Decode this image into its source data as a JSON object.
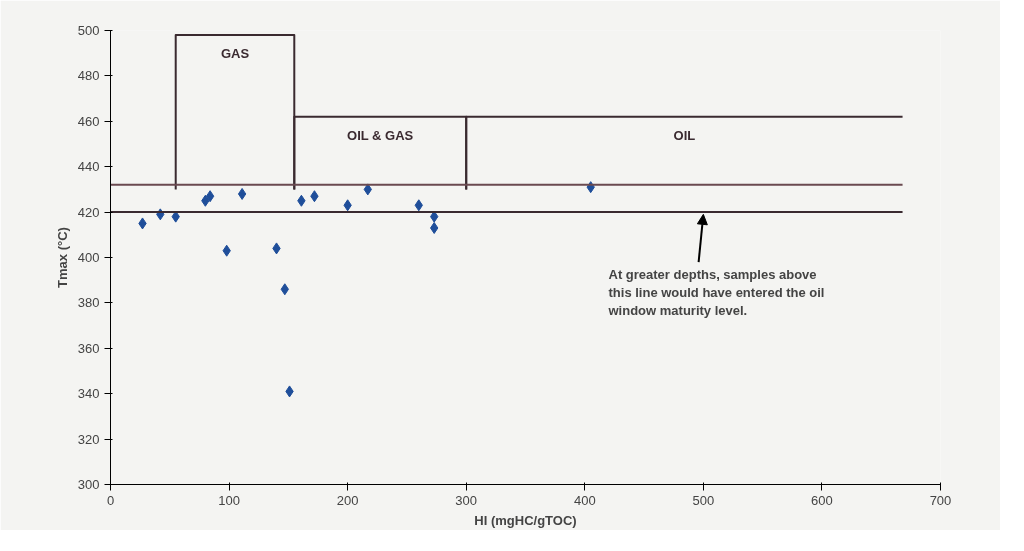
{
  "chart_data": {
    "type": "scatter",
    "xlabel": "HI (mgHC/gTOC)",
    "ylabel": "Tmax (°C)",
    "xlim": [
      0,
      700
    ],
    "ylim": [
      300,
      500
    ],
    "xticks": [
      0,
      100,
      200,
      300,
      400,
      500,
      600,
      700
    ],
    "yticks": [
      300,
      320,
      340,
      360,
      380,
      400,
      420,
      440,
      460,
      480,
      500
    ],
    "grid": false,
    "series": [
      {
        "marker": "diamond",
        "color": "#1f4e9a",
        "x": [
          27,
          42,
          55,
          80,
          84,
          111,
          98,
          140,
          147,
          151,
          161,
          172,
          200,
          217,
          260,
          273,
          273,
          405
        ],
        "values": [
          415,
          419,
          418,
          425,
          427,
          428,
          403,
          404,
          386,
          341,
          425,
          427,
          423,
          430,
          423,
          418,
          413,
          431
        ]
      },
      {
        "type": "line",
        "name": "GAS",
        "color": "#3a2a30",
        "x": [
          55,
          55,
          155,
          155
        ],
        "values": [
          430,
          498,
          498,
          430
        ]
      },
      {
        "type": "line",
        "name": "OIL & GAS",
        "color": "#3a2a30",
        "x": [
          155,
          155,
          300,
          300
        ],
        "values": [
          430,
          462,
          462,
          430
        ]
      },
      {
        "type": "line",
        "name": "OIL",
        "color": "#3a2a30",
        "x": [
          300,
          300,
          668
        ],
        "values": [
          430,
          462,
          462
        ]
      },
      {
        "type": "line",
        "color": "#6a4a50",
        "x": [
          0,
          668
        ],
        "values": [
          432,
          432
        ]
      },
      {
        "type": "line",
        "color": "#3a2a30",
        "x": [
          0,
          668
        ],
        "values": [
          420,
          420
        ]
      }
    ],
    "annotations": [
      {
        "text": "At greater depths, samples above this line would have entered the oil window maturity level.",
        "x": 500,
        "y": 420
      }
    ]
  }
}
